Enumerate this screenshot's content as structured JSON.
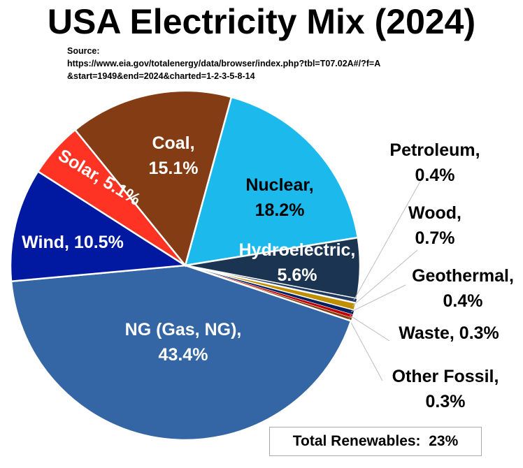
{
  "chart_data": {
    "type": "pie",
    "title": "USA Electricity Mix (2024)",
    "source_lines": [
      "Source:",
      "https://www.eia.gov/totalenergy/data/browser/index.php?tbl=T07.02A#/?f=A",
      "&start=1949&end=2024&charted=1-2-3-5-8-14"
    ],
    "slices": [
      {
        "name": "Nuclear",
        "value": 18.2,
        "label": [
          "Nuclear,",
          "18.2%"
        ],
        "color": "#1cb9ec"
      },
      {
        "name": "Hydroelectric",
        "value": 5.6,
        "label": [
          "Hydroelectric,",
          "5.6%"
        ],
        "color": "#1b3451"
      },
      {
        "name": "Petroleum",
        "value": 0.4,
        "label": [
          "Petroleum,",
          "0.4%"
        ],
        "color": "#1f3864"
      },
      {
        "name": "Wood",
        "value": 0.7,
        "label": [
          "Wood,",
          "0.7%"
        ],
        "color": "#bf8f00"
      },
      {
        "name": "Geothermal",
        "value": 0.4,
        "label": [
          "Geothermal,",
          "0.4%"
        ],
        "color": "#002060"
      },
      {
        "name": "Waste",
        "value": 0.3,
        "label": [
          "Waste, 0.3%"
        ],
        "color": "#c00000"
      },
      {
        "name": "Other Fossil",
        "value": 0.3,
        "label": [
          "Other Fossil,",
          "0.3%"
        ],
        "color": "#843c0c"
      },
      {
        "name": "NG (Gas, NG)",
        "value": 43.4,
        "label": [
          "NG (Gas, NG),",
          "43.4%"
        ],
        "color": "#3465a4"
      },
      {
        "name": "Wind",
        "value": 10.5,
        "label": [
          "Wind, 10.5%"
        ],
        "color": "#0019a0"
      },
      {
        "name": "Solar",
        "value": 5.1,
        "label": [
          "Solar, 5.1%"
        ],
        "color": "#ff3323"
      },
      {
        "name": "Coal",
        "value": 15.1,
        "label": [
          "Coal,",
          "15.1%"
        ],
        "color": "#843c14"
      }
    ],
    "annotation": "Total Renewables:  23%"
  }
}
